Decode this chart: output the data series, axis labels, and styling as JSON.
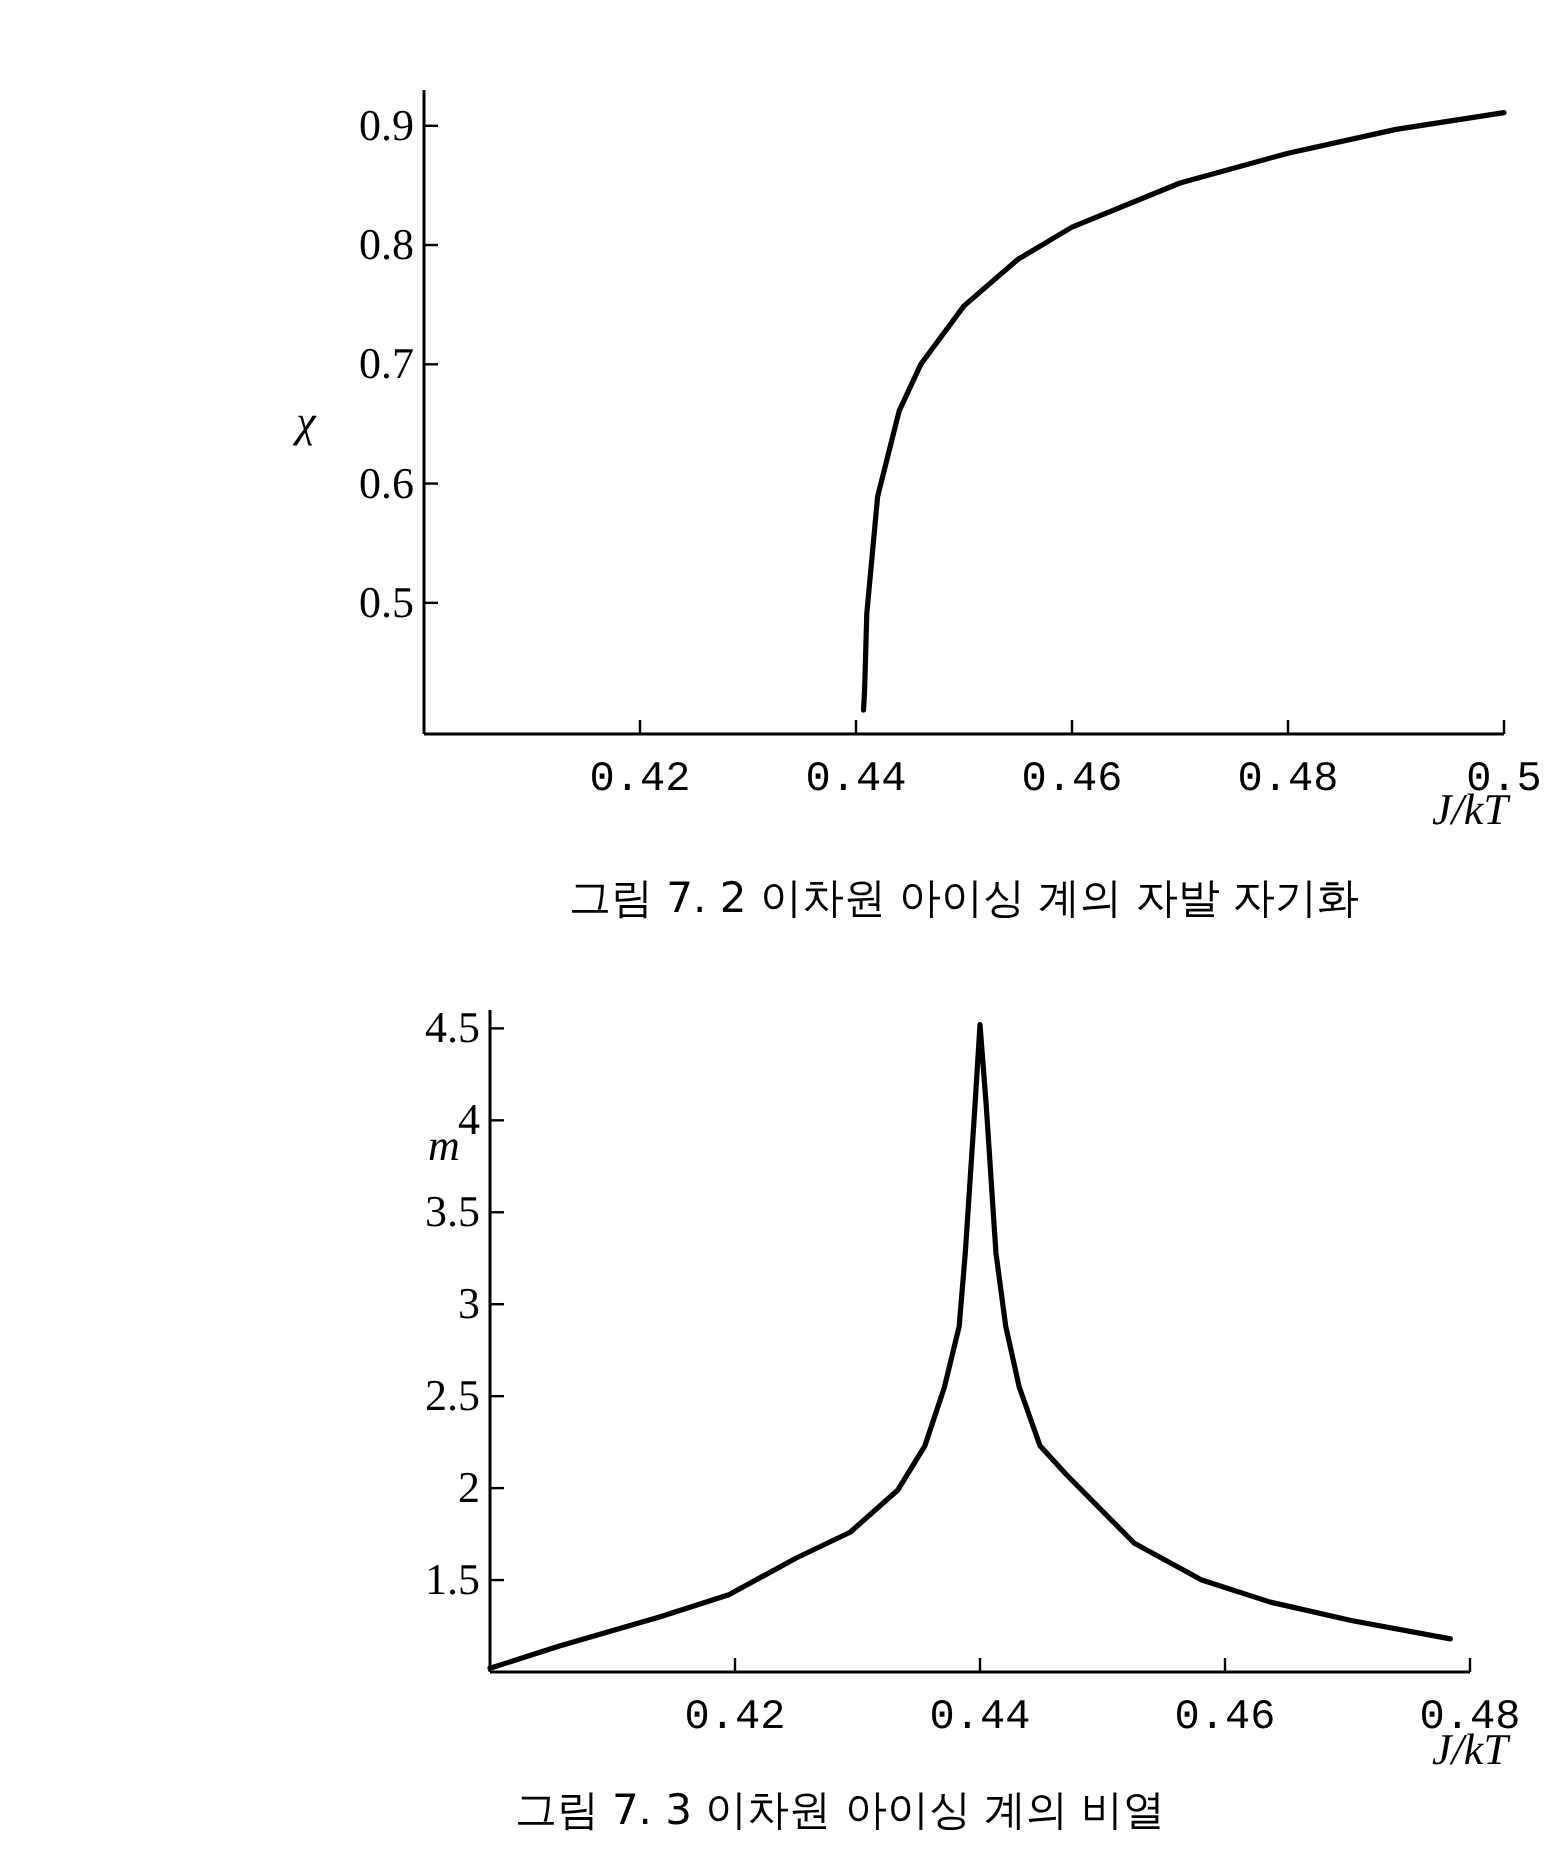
{
  "chart_data": [
    {
      "type": "line",
      "xlabel": "J/kT",
      "ylabel": "χ",
      "annotations": [
        "그림 7. 2  이차원 아이싱 계의 자발 자기화"
      ],
      "color": "#000000",
      "x": [
        0.4407,
        0.4408,
        0.441,
        0.442,
        0.444,
        0.446,
        0.45,
        0.455,
        0.46,
        0.47,
        0.48,
        0.49,
        0.5
      ],
      "values": [
        0.41,
        0.428,
        0.491,
        0.589,
        0.661,
        0.7,
        0.749,
        0.788,
        0.815,
        0.852,
        0.877,
        0.897,
        0.911
      ],
      "xlim": [
        0.4,
        0.5
      ],
      "ylim": [
        0.39,
        0.93
      ],
      "xticks": [
        0.42,
        0.44,
        0.46,
        0.48,
        0.5
      ],
      "yticks": [
        0.5,
        0.6,
        0.7,
        0.8,
        0.9
      ]
    },
    {
      "type": "line",
      "xlabel": "J/kT",
      "ylabel": "m",
      "annotations": [
        "그림 7. 3  이차원 아이싱 계의 비열"
      ],
      "color": "#000000",
      "x": [
        0.4,
        0.4056,
        0.4139,
        0.4195,
        0.425,
        0.4294,
        0.4333,
        0.4355,
        0.4371,
        0.4383,
        0.4388,
        0.4396,
        0.44,
        0.4405,
        0.4413,
        0.4421,
        0.4432,
        0.4449,
        0.4471,
        0.4526,
        0.4581,
        0.4637,
        0.4703,
        0.4784
      ],
      "values": [
        1.02,
        1.14,
        1.3,
        1.42,
        1.62,
        1.76,
        1.99,
        2.23,
        2.55,
        2.88,
        3.28,
        4.09,
        4.52,
        4.09,
        3.28,
        2.88,
        2.55,
        2.23,
        2.07,
        1.7,
        1.5,
        1.38,
        1.28,
        1.18
      ],
      "xlim": [
        0.4,
        0.48
      ],
      "ylim": [
        1.0,
        4.6
      ],
      "xticks": [
        0.42,
        0.44,
        0.46,
        0.48
      ],
      "yticks": [
        1.5,
        2,
        2.5,
        3,
        3.5,
        4,
        4.5
      ]
    }
  ]
}
